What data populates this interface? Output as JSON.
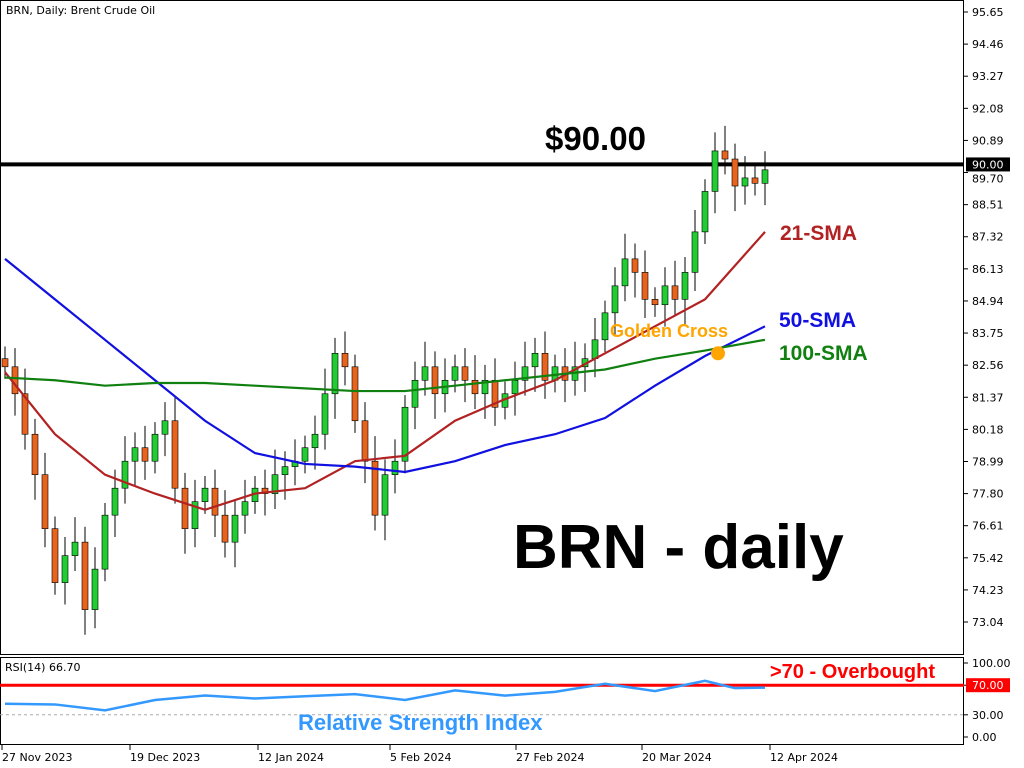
{
  "header": {
    "title": "BRN, Daily:  Brent Crude Oil"
  },
  "colors": {
    "bull": "#22cc33",
    "bear": "#e8641e",
    "sma21": "#b22222",
    "sma50": "#1010e0",
    "sma100": "#108010",
    "rsi": "#3399ff",
    "level": "#ff0000",
    "golden_cross": "#ffa500"
  },
  "chart_data": [
    {
      "type": "candlestick",
      "title": "BRN - daily",
      "price_axis": {
        "ticks": [
          "95.65",
          "94.46",
          "93.27",
          "92.08",
          "90.89",
          "89.70",
          "88.51",
          "87.32",
          "86.13",
          "84.94",
          "83.75",
          "82.56",
          "81.37",
          "80.18",
          "78.99",
          "77.80",
          "76.61",
          "75.42",
          "74.23",
          "73.04"
        ],
        "range": [
          72.5,
          95.9
        ]
      },
      "date_axis": {
        "ticks": [
          "27 Nov 2023",
          "19 Dec 2023",
          "12 Jan 2024",
          "5 Feb 2024",
          "27 Feb 2024",
          "20 Mar 2024",
          "12 Apr 2024"
        ]
      },
      "open": [
        82.8,
        82.5,
        81.5,
        80,
        78.5,
        76.5,
        74.5,
        75.5,
        76,
        73.5,
        75,
        77,
        78,
        79,
        79.5,
        79,
        80,
        80.5,
        78,
        76.5,
        77.5,
        78,
        77,
        76,
        77,
        77.5,
        78,
        77.8,
        78.5,
        78.8,
        79,
        79.5,
        80,
        81.5,
        83,
        82.5,
        80.5,
        79,
        77,
        78.5,
        79,
        81,
        82,
        82.5,
        81.5,
        82,
        82.5,
        82,
        81.5,
        82,
        81,
        81.5,
        82,
        82.5,
        83,
        82,
        82.5,
        82,
        82.5,
        82.8,
        83.5,
        84.5,
        85.5,
        86.5,
        86,
        85,
        84.8,
        85.5,
        85,
        86,
        87.5,
        89,
        90.5,
        90.2,
        89.2,
        89.5,
        89.3
      ],
      "close": [
        82.5,
        81.5,
        80,
        78.5,
        76.5,
        74.5,
        75.5,
        76,
        73.5,
        75,
        77,
        78,
        79,
        79.5,
        79,
        80,
        80.5,
        78,
        76.5,
        77.5,
        78,
        77,
        76,
        77,
        77.5,
        78,
        77.8,
        78.5,
        78.8,
        79,
        79.5,
        80,
        81.5,
        83,
        82.5,
        80.5,
        79,
        77,
        78.5,
        79,
        81,
        82,
        82.5,
        81.5,
        82,
        82.5,
        82,
        81.5,
        82,
        81,
        81.5,
        82,
        82.5,
        83,
        82,
        82.5,
        82,
        82.5,
        82.8,
        83.5,
        84.5,
        85.5,
        86.5,
        86,
        85,
        84.8,
        85.5,
        85,
        86,
        87.5,
        89,
        90.5,
        90.2,
        89.2,
        89.5,
        89.3,
        89.8
      ],
      "sma_knot_index": [
        0,
        5,
        10,
        15,
        20,
        25,
        30,
        35,
        40,
        45,
        50,
        55,
        60,
        65,
        70,
        76
      ],
      "series": [
        {
          "name": "21-SMA",
          "values": [
            82.3,
            80,
            78.5,
            77.8,
            77.2,
            77.8,
            78,
            79,
            79.2,
            80.5,
            81.3,
            82,
            83,
            84,
            85,
            87.5
          ]
        },
        {
          "name": "50-SMA",
          "values": [
            86.5,
            85,
            83.5,
            82,
            80.5,
            79.3,
            78.9,
            78.8,
            78.6,
            79,
            79.6,
            80,
            80.6,
            81.8,
            82.9,
            84
          ]
        },
        {
          "name": "100-SMA",
          "values": [
            82.1,
            82,
            81.8,
            81.9,
            81.9,
            81.8,
            81.7,
            81.6,
            81.6,
            81.8,
            82,
            82.2,
            82.4,
            82.8,
            83.1,
            83.5
          ]
        }
      ],
      "annotations": {
        "level_label": "$90.00",
        "level_value": 90.0,
        "level_tag": "90.00",
        "golden_cross": "Golden Cross"
      }
    },
    {
      "type": "line",
      "title": "RSI(14) 66.70",
      "ylim": [
        0,
        100
      ],
      "y_ticks": [
        "100.00",
        "70.00",
        "30.00",
        "0.00"
      ],
      "overbought_level": 70,
      "overbought_label": ">70 - Overbought",
      "oversold_level": 30,
      "label": "Relative Strength Index",
      "knot_index": [
        0,
        5,
        10,
        15,
        20,
        25,
        30,
        35,
        40,
        45,
        50,
        55,
        60,
        65,
        70,
        73,
        76
      ],
      "values": [
        45,
        44,
        36,
        50,
        56,
        52,
        55,
        58,
        50,
        63,
        56,
        61,
        72,
        62,
        76,
        66,
        66.7
      ]
    }
  ]
}
